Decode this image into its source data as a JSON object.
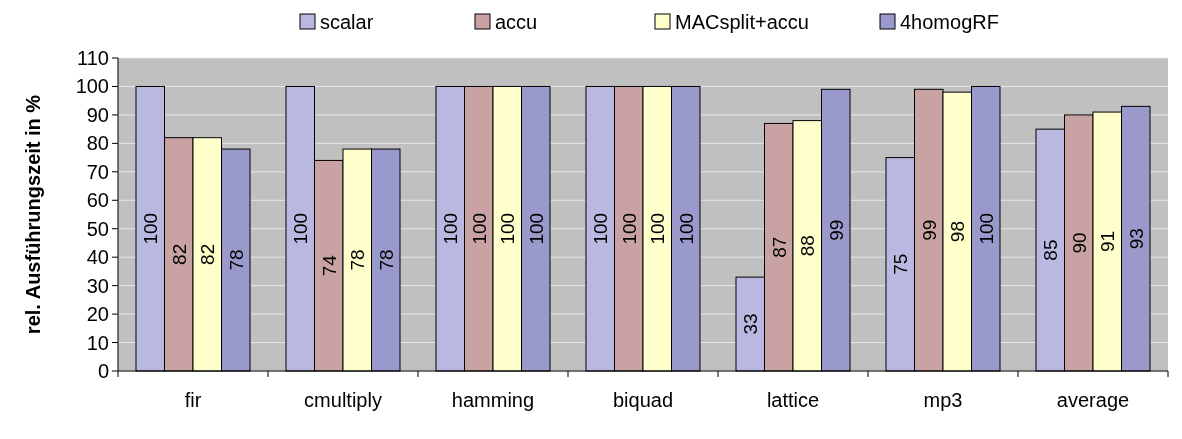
{
  "chart_data": {
    "type": "bar",
    "ylabel": "rel. Ausführungszeit in %",
    "categories": [
      "fir",
      "cmultiply",
      "hamming",
      "biquad",
      "lattice",
      "mp3",
      "average"
    ],
    "series": [
      {
        "name": "scalar",
        "color": "#b8b8e0",
        "values": [
          100,
          100,
          100,
          100,
          33,
          75,
          85
        ]
      },
      {
        "name": "accu",
        "color": "#c9a3a3",
        "values": [
          82,
          74,
          100,
          100,
          87,
          99,
          90
        ]
      },
      {
        "name": "MACsplit+accu",
        "color": "#ffffcc",
        "values": [
          82,
          78,
          100,
          100,
          88,
          98,
          91
        ]
      },
      {
        "name": "4homogRF",
        "color": "#9999cc",
        "values": [
          78,
          78,
          100,
          100,
          99,
          100,
          93
        ]
      }
    ],
    "ylim": [
      0,
      110
    ],
    "yticks": [
      0,
      10,
      20,
      30,
      40,
      50,
      60,
      70,
      80,
      90,
      100,
      110
    ],
    "grid": "y",
    "legend": "top",
    "data_labels": true
  }
}
